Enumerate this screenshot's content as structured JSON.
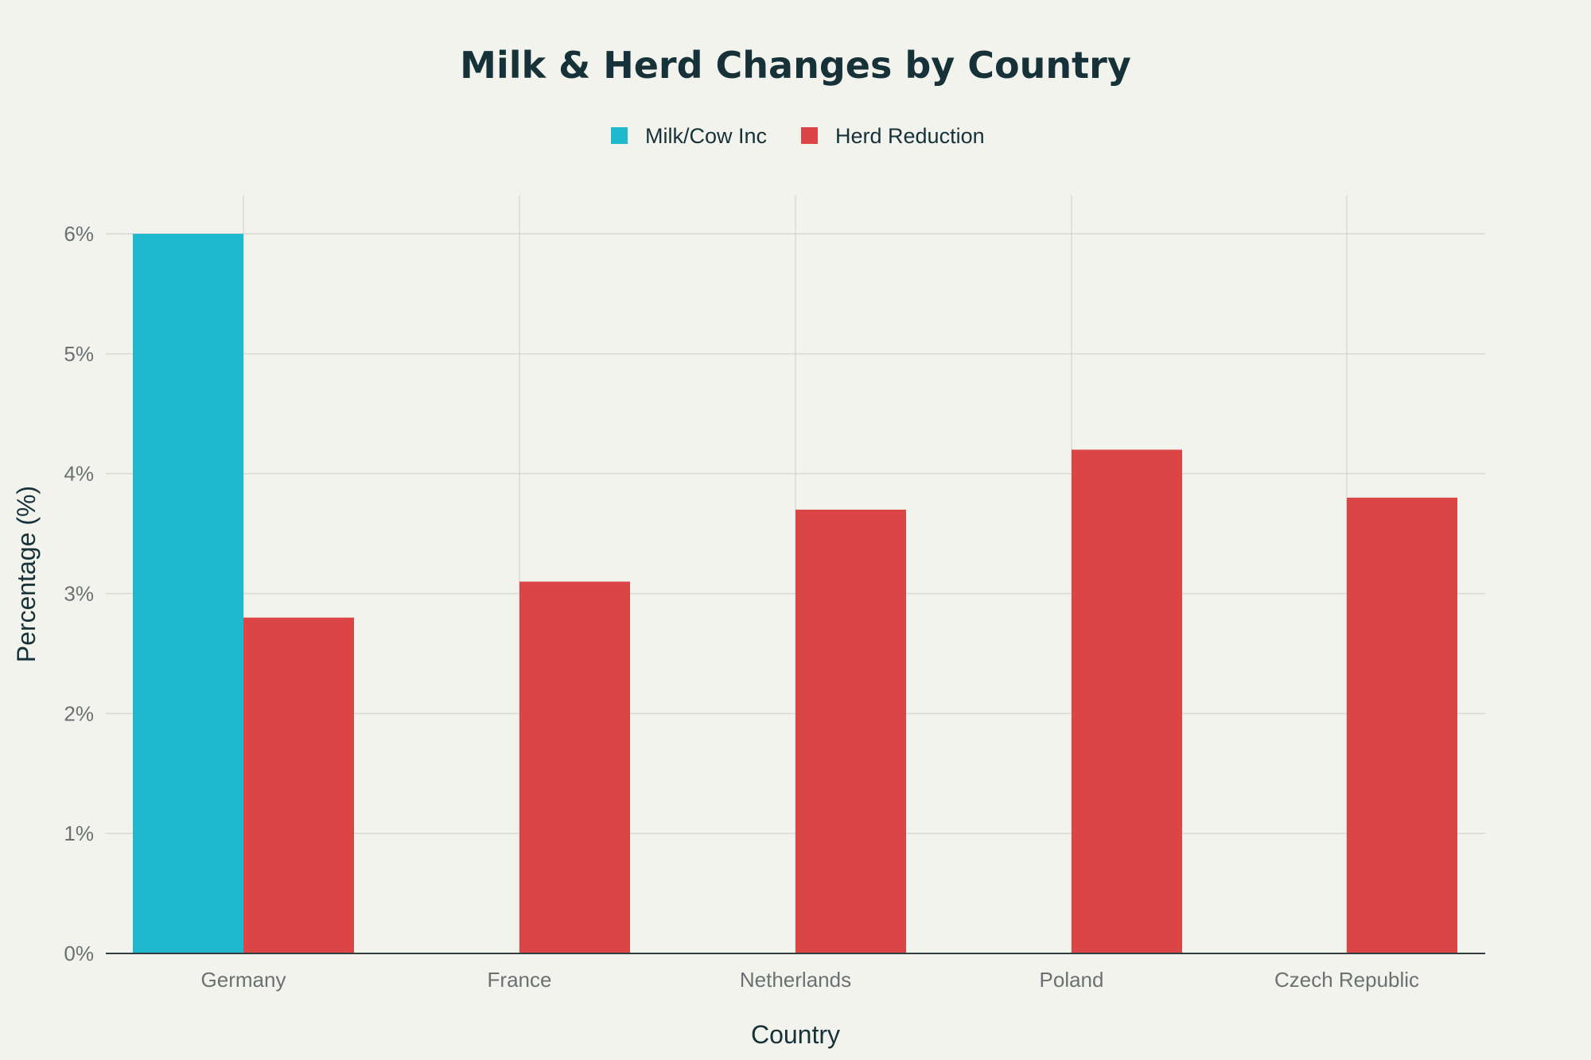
{
  "colors": {
    "background": "#f3f3ee",
    "milk": "#1fb8cd",
    "herd": "#db4545",
    "text": "#163238",
    "tick": "#6b7173"
  },
  "chart_data": {
    "type": "bar",
    "title": "Milk & Herd Changes by Country",
    "xlabel": "Country",
    "ylabel": "Percentage (%)",
    "categories": [
      "Germany",
      "France",
      "Netherlands",
      "Poland",
      "Czech Republic"
    ],
    "series": [
      {
        "name": "Milk/Cow Inc",
        "color": "#1fb8cd",
        "values": [
          6.0,
          null,
          null,
          null,
          null
        ]
      },
      {
        "name": "Herd Reduction",
        "color": "#db4545",
        "values": [
          2.8,
          3.1,
          3.7,
          4.2,
          3.8
        ]
      }
    ],
    "ylim": [
      0,
      6
    ],
    "yticks": [
      0,
      1,
      2,
      3,
      4,
      5,
      6
    ],
    "ytick_labels": [
      "0%",
      "1%",
      "2%",
      "3%",
      "4%",
      "5%",
      "6%"
    ],
    "grid": true,
    "legend_position": "top-center"
  }
}
